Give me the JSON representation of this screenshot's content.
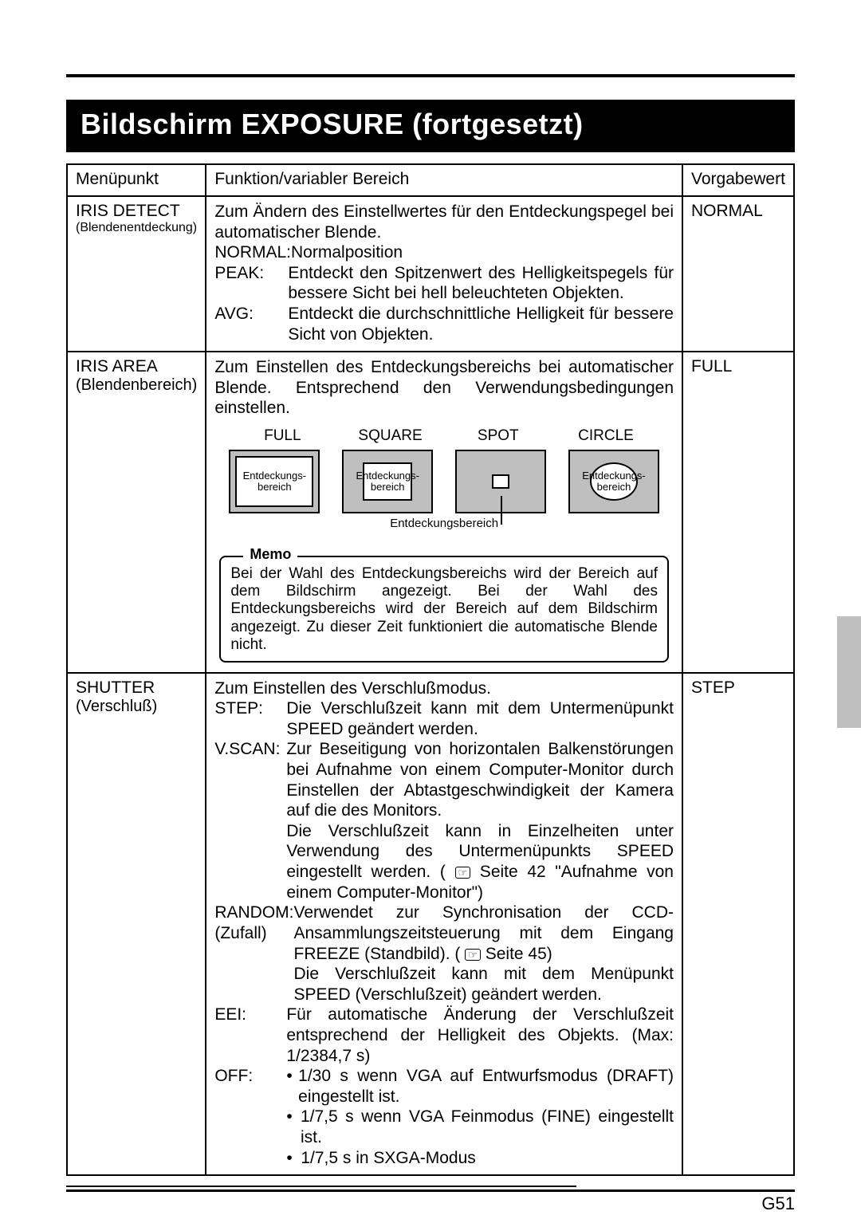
{
  "page_number": "G51",
  "title": "Bildschirm EXPOSURE (fortgesetzt)",
  "headers": {
    "menu": "Menüpunkt",
    "func": "Funktion/variabler Bereich",
    "default": "Vorgabewert"
  },
  "iris_detect": {
    "name": "IRIS DETECT",
    "sub": "(Blendenentdeckung)",
    "intro": "Zum Ändern des Einstellwertes für den Entdeckungspegel bei automatischer Blende.",
    "normal_label": "NORMAL:",
    "normal_text": "Normalposition",
    "peak_label": "PEAK:",
    "peak_text": "Entdeckt den Spitzenwert des Helligkeitspegels für bessere Sicht bei hell beleuchteten Objekten.",
    "avg_label": "AVG:",
    "avg_text": "Entdeckt die durchschnittliche Helligkeit für bessere Sicht von Objekten.",
    "default": "NORMAL"
  },
  "iris_area": {
    "name": "IRIS AREA",
    "sub": "(Blendenbereich)",
    "intro": "Zum Einstellen des Entdeckungsbereichs bei automatischer Blende. Entsprechend den Verwendungsbedingungen einstellen.",
    "labels": {
      "full": "FULL",
      "square": "SQUARE",
      "spot": "SPOT",
      "circle": "CIRCLE"
    },
    "box_text": "Entdeckungs-\nbereich",
    "spot_caption": "Entdeckungsbereich",
    "memo_label": "Memo",
    "memo_text": "Bei der Wahl des Entdeckungsbereichs wird der Bereich auf dem Bildschirm angezeigt. Bei der Wahl des Entdeckungsbereichs wird der Bereich auf dem Bildschirm angezeigt. Zu dieser Zeit funktioniert die automatische Blende nicht.",
    "default": "FULL"
  },
  "shutter": {
    "name": "SHUTTER",
    "sub": "(Verschluß)",
    "intro": "Zum Einstellen des Verschlußmodus.",
    "step_label": "STEP:",
    "step_text": "Die Verschlußzeit kann mit dem Untermenüpunkt SPEED geändert werden.",
    "vscan_label": "V.SCAN:",
    "vscan_text1": "Zur Beseitigung von horizontalen Balkenstörungen bei Aufnahme von einem Computer-Monitor durch Einstellen der Abtastgeschwindigkeit der Kamera auf die des Monitors.",
    "vscan_text2a": "Die Verschlußzeit kann in Einzelheiten unter Verwendung des Untermenüpunkts SPEED eingestellt werden. ( ",
    "vscan_text2b": " Seite 42 \"Aufnahme von einem Computer-Monitor\")",
    "random_label": "RANDOM:",
    "random_sub": "(Zufall)",
    "random_text1a": "Verwendet zur Synchronisation der CCD-Ansammlungszeitsteuerung mit dem Eingang FREEZE (Standbild). ( ",
    "random_text1b": " Seite 45)",
    "random_text2": "Die Verschlußzeit kann mit dem Menüpunkt SPEED (Verschlußzeit) geändert werden.",
    "eei_label": "EEI:",
    "eei_text": "Für automatische Änderung der Verschlußzeit entsprechend der Helligkeit des Objekts. (Max: 1/2384,7 s)",
    "off_label": "OFF:",
    "off_b1": "1/30 s wenn VGA auf Entwurfsmodus (DRAFT) eingestellt ist.",
    "off_b2": "1/7,5 s wenn VGA Feinmodus (FINE) eingestellt ist.",
    "off_b3": "1/7,5 s in SXGA-Modus",
    "default": "STEP"
  },
  "colors": {
    "diagram_bg": "#bfbfbf"
  }
}
